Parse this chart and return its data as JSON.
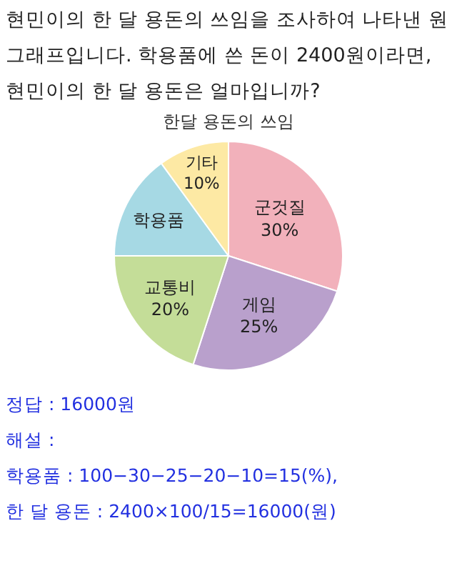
{
  "chart_data": {
    "type": "pie",
    "title": "한달 용돈의 쓰임",
    "categories": [
      "군것질",
      "게임",
      "교통비",
      "학용품",
      "기타"
    ],
    "values": [
      30,
      25,
      20,
      15,
      10
    ],
    "value_labels": [
      "30%",
      "25%",
      "20%",
      null,
      "10%"
    ],
    "colors": [
      "#f2b1bb",
      "#b9a0cc",
      "#c4dd98",
      "#a6d9e4",
      "#fde9a4"
    ],
    "legend": false,
    "annotations": [
      "현민이의 한 달 용돈의 쓰임을 조사하여 나타낸 원그래프입니다. 학용품에 쓴 돈이 2400원이라면, 현민이의 한 달 용돈은 얼마입니까?",
      "정답 : 16000원",
      "해설 :",
      "학용품 : 100−30−25−20−10=15(%),",
      "한 달 용돈 : 2400×100/15=16000(원)"
    ]
  }
}
